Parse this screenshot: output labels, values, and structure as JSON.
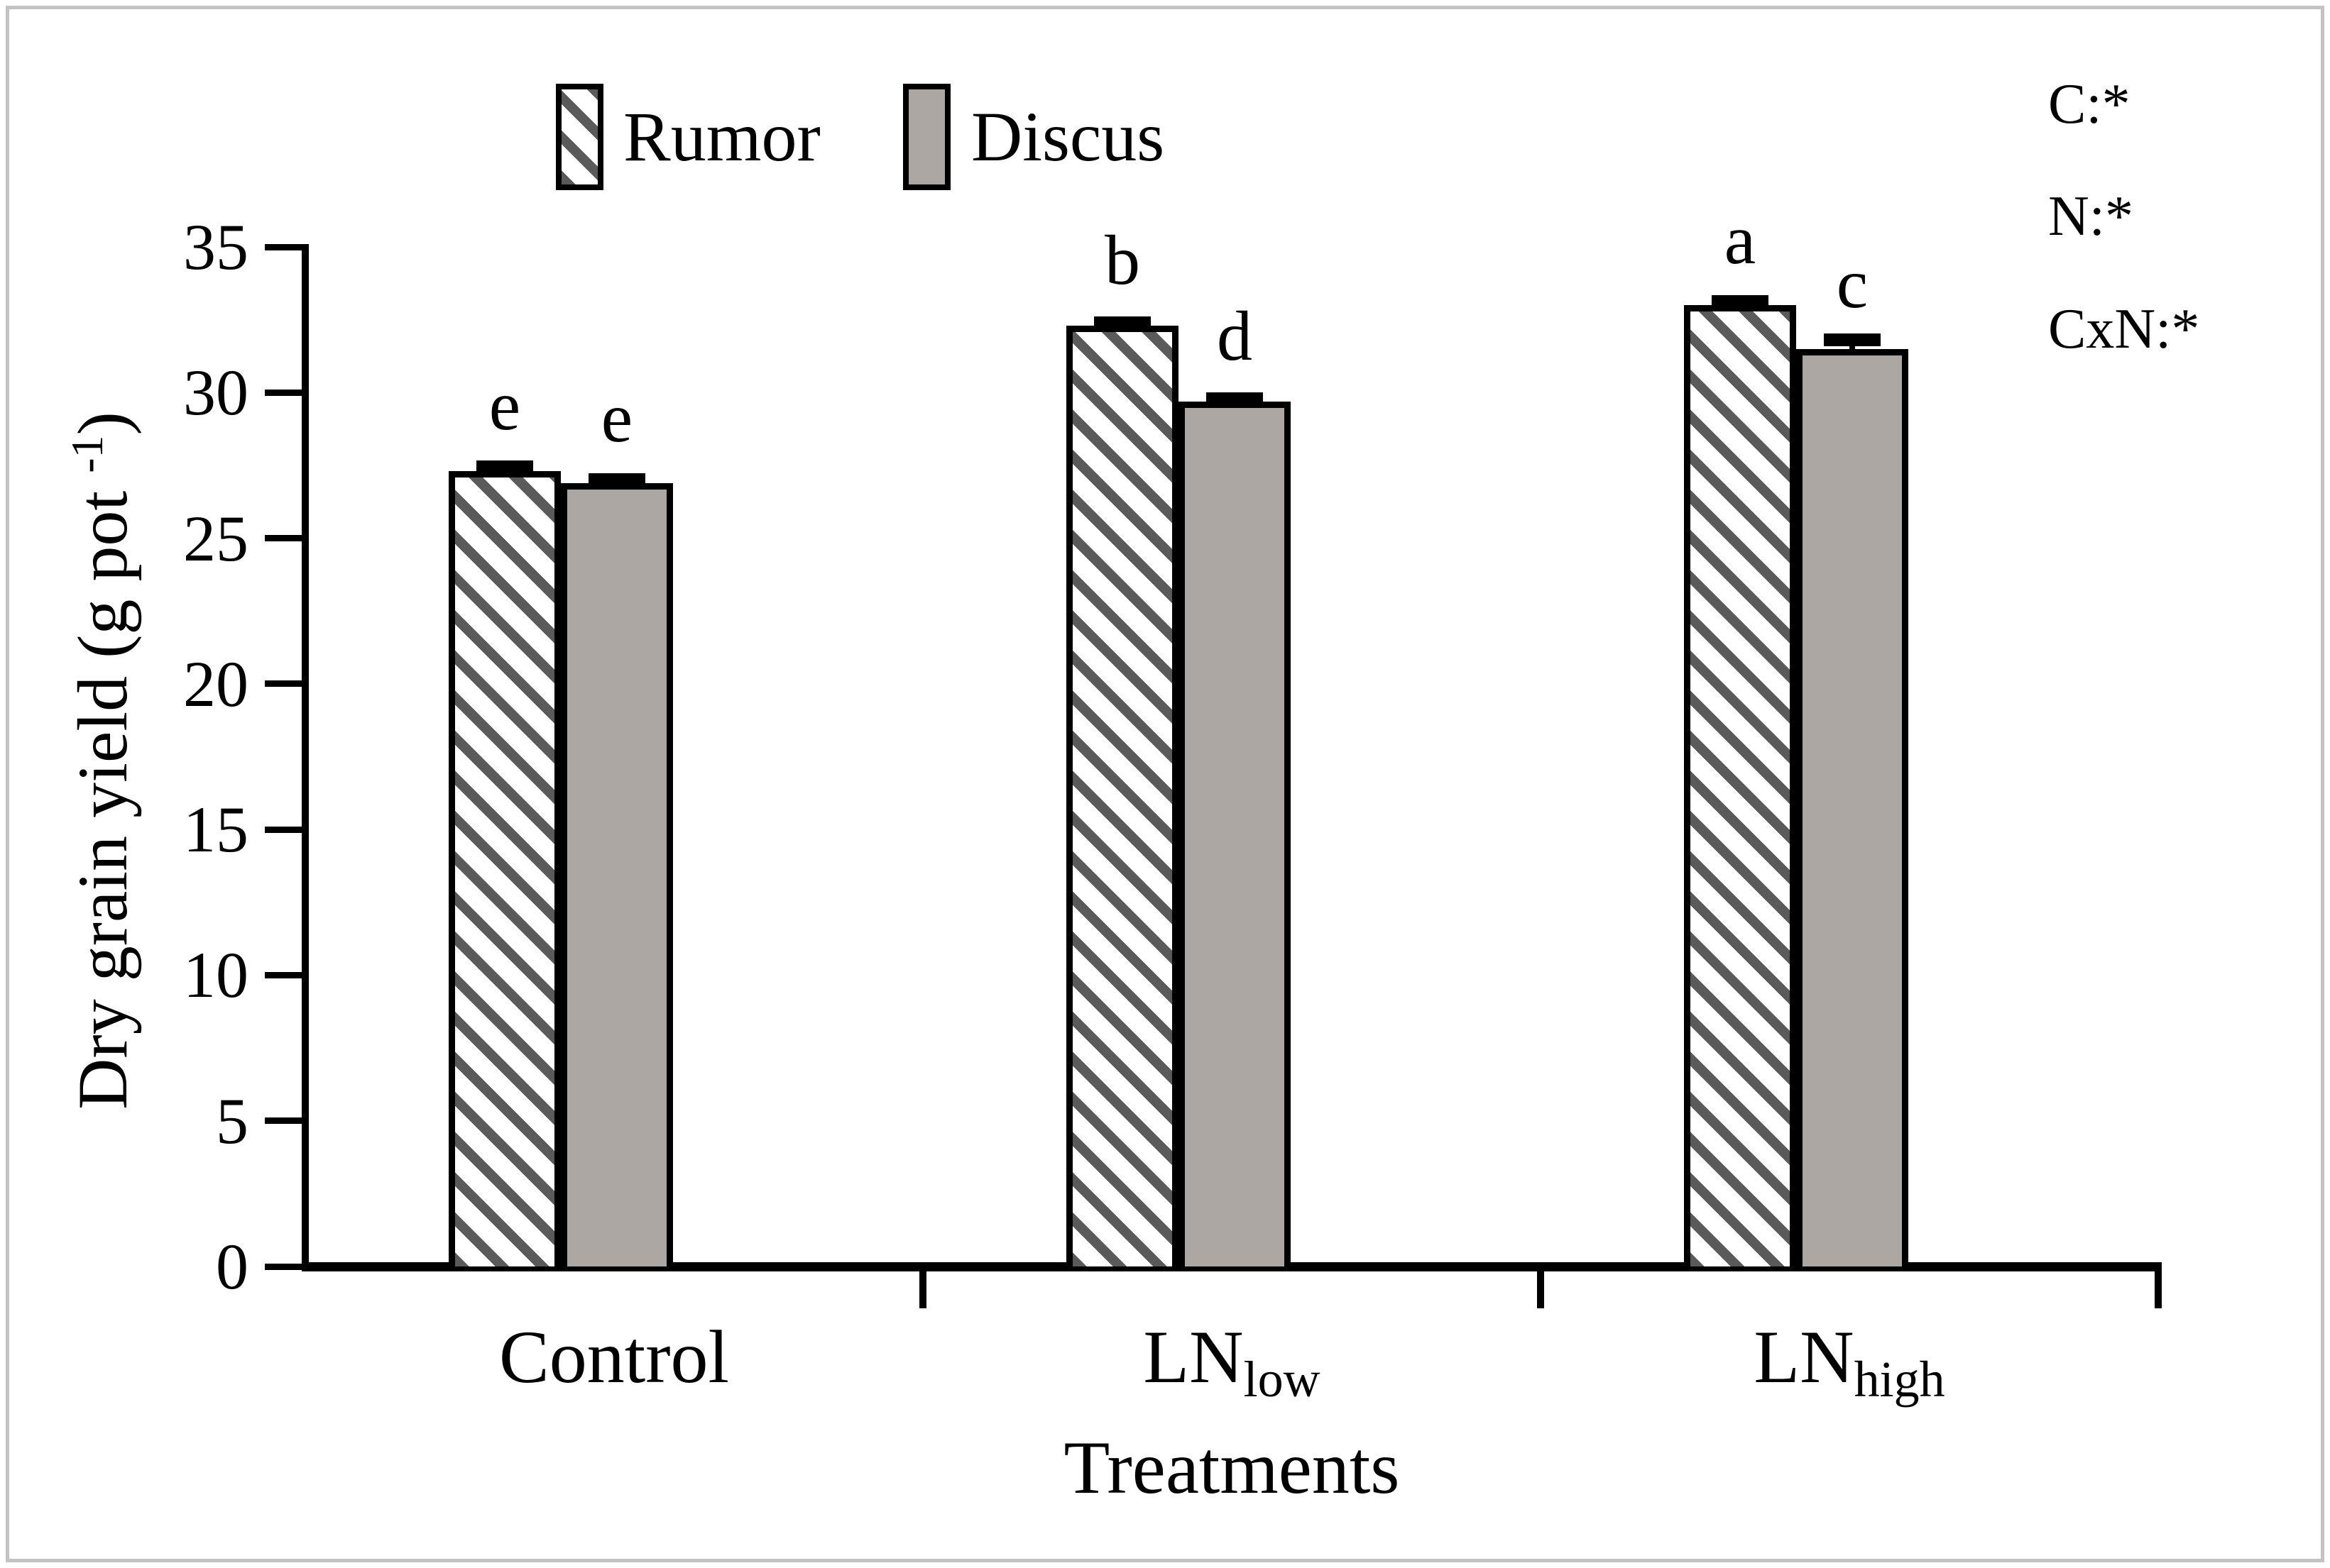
{
  "figure": {
    "colors": {
      "bar_gray": "#ada7a4",
      "hatch_stripe": "#5a5a5a",
      "bar_border": "#000000",
      "figure_border": "#c3c3c3",
      "background": "#ffffff"
    }
  },
  "legend": {
    "items": [
      {
        "label": "Rumor",
        "swatch": "hatched"
      },
      {
        "label": "Discus",
        "swatch": "solid"
      }
    ]
  },
  "stats_annotations": [
    "C:*",
    "N:*",
    "CxN:*"
  ],
  "axes": {
    "ylabel_prefix": "Dry grain yield (g pot ",
    "ylabel_sup": "-1",
    "ylabel_suffix": ")",
    "ylabel_full": "Dry grain yield (g pot -1)",
    "xlabel": "Treatments"
  },
  "chart_data": {
    "type": "bar",
    "title": "",
    "xlabel": "Treatments",
    "ylabel": "Dry grain yield (g pot -1)",
    "ylim": [
      0,
      35
    ],
    "yticks": [
      0,
      5,
      10,
      15,
      20,
      25,
      30,
      35
    ],
    "grid": false,
    "legend_position": "top",
    "categories": [
      {
        "base": "Control",
        "sub": ""
      },
      {
        "base": "LN",
        "sub": "low"
      },
      {
        "base": "LN",
        "sub": "high"
      }
    ],
    "series": [
      {
        "name": "Rumor",
        "style": "hatched",
        "values": [
          27.3,
          32.3,
          33.0
        ],
        "letters": [
          "e",
          "b",
          "a"
        ],
        "errors": [
          0.15,
          0.1,
          0.12
        ]
      },
      {
        "name": "Discus",
        "style": "solid",
        "values": [
          26.9,
          29.7,
          31.5
        ],
        "letters": [
          "e",
          "d",
          "c"
        ],
        "errors": [
          0.1,
          0.08,
          0.3
        ]
      }
    ]
  }
}
